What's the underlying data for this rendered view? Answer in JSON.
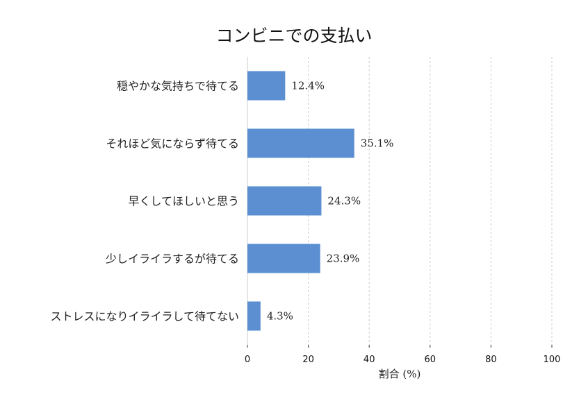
{
  "chart_data": {
    "type": "bar",
    "orientation": "horizontal",
    "title": "コンビニでの支払い",
    "categories": [
      "穏やかな気持ちで待てる",
      "それほど気にならず待てる",
      "早くしてほしいと思う",
      "少しイライラするが待てる",
      "ストレスになりイライラして待てない"
    ],
    "values": [
      12.4,
      35.1,
      24.3,
      23.9,
      4.3
    ],
    "value_labels": [
      "12.4%",
      "35.1%",
      "24.3%",
      "23.9%",
      "4.3%"
    ],
    "xlabel": "割合 (%)",
    "ylabel": "",
    "xlim": [
      0,
      100
    ],
    "xticks": [
      0,
      20,
      40,
      60,
      80,
      100
    ],
    "grid": "vertical dashed",
    "bar_color": "#5b8fd1"
  }
}
